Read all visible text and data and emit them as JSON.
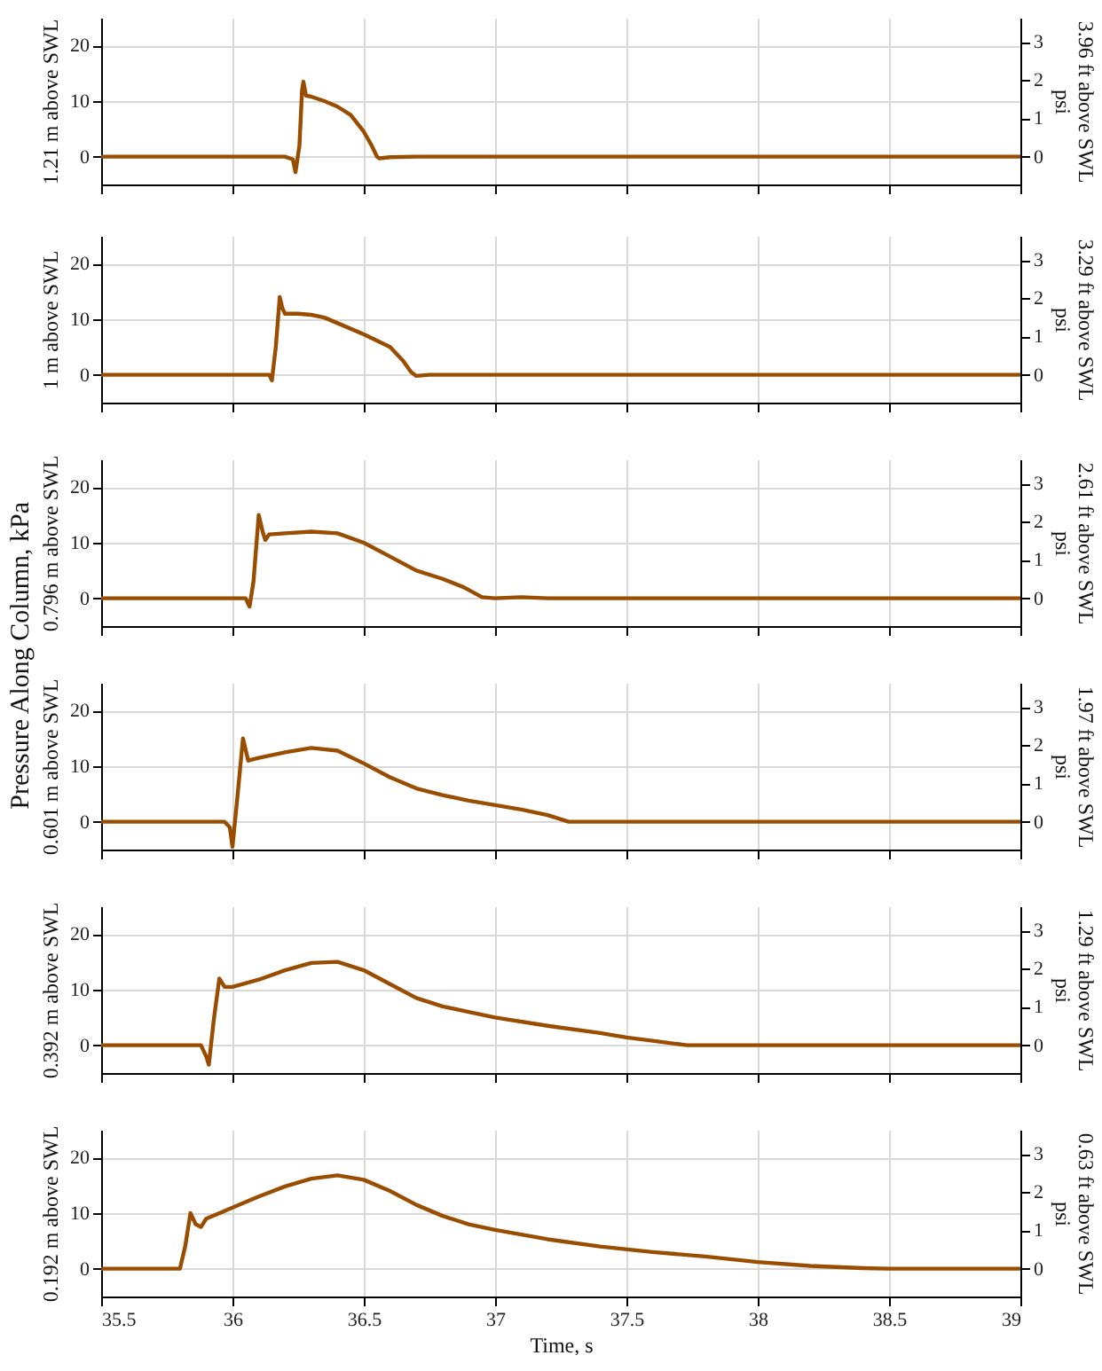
{
  "chart_data": [
    {
      "type": "line",
      "ylabel": "1.21 m above SWL",
      "y2label": "3.96 ft above SWL\npsi",
      "annotations": [
        "Pressure Along Column, kPa"
      ],
      "xlim": [
        35.5,
        39
      ],
      "xticks": [
        35.5,
        36,
        36.5,
        37,
        37.5,
        38,
        38.5,
        39
      ],
      "ylim": [
        -5,
        25
      ],
      "yticks": [
        0,
        10,
        20
      ],
      "y2lim": [
        -0.725,
        3.626
      ],
      "y2ticks": [
        0,
        1,
        2,
        3
      ],
      "grid": true,
      "tick_labels": "y",
      "line_style": "solid",
      "series": [
        {
          "color": "#994d00",
          "x": [
            35.5,
            36.2,
            36.23,
            36.24,
            36.255,
            36.265,
            36.27,
            36.28,
            36.3,
            36.35,
            36.4,
            36.45,
            36.5,
            36.53,
            36.55,
            36.56,
            36.6,
            36.7,
            39
          ],
          "values": [
            0,
            0,
            -0.5,
            -2.8,
            2,
            12,
            13.5,
            11,
            10.8,
            10,
            9,
            7.5,
            4.5,
            2,
            0,
            -0.3,
            -0.1,
            0,
            0
          ]
        }
      ]
    },
    {
      "type": "line",
      "ylabel": "1 m above SWL",
      "y2label": "3.29 ft above SWL\npsi",
      "xlim": [
        35.5,
        39
      ],
      "xticks": [
        35.5,
        36,
        36.5,
        37,
        37.5,
        38,
        38.5,
        39
      ],
      "ylim": [
        -5,
        25
      ],
      "yticks": [
        0,
        10,
        20
      ],
      "y2lim": [
        -0.725,
        3.626
      ],
      "y2ticks": [
        0,
        1,
        2,
        3
      ],
      "grid": true,
      "tick_labels": "y",
      "line_style": "solid",
      "series": [
        {
          "color": "#994d00",
          "x": [
            35.5,
            36.14,
            36.15,
            36.165,
            36.18,
            36.19,
            36.2,
            36.25,
            36.3,
            36.35,
            36.4,
            36.5,
            36.6,
            36.65,
            36.68,
            36.7,
            36.75,
            39
          ],
          "values": [
            0,
            0,
            -1,
            5,
            14,
            12,
            11,
            11,
            10.8,
            10.3,
            9.3,
            7.3,
            5,
            2.5,
            0.5,
            -0.2,
            0,
            0
          ]
        }
      ]
    },
    {
      "type": "line",
      "ylabel": "0.796 m above SWL",
      "y2label": "2.61 ft above SWL\npsi",
      "xlim": [
        35.5,
        39
      ],
      "xticks": [
        35.5,
        36,
        36.5,
        37,
        37.5,
        38,
        38.5,
        39
      ],
      "ylim": [
        -5,
        25
      ],
      "yticks": [
        0,
        10,
        20
      ],
      "y2lim": [
        -0.725,
        3.626
      ],
      "y2ticks": [
        0,
        1,
        2,
        3
      ],
      "grid": true,
      "tick_labels": "y",
      "line_style": "solid",
      "series": [
        {
          "color": "#994d00",
          "x": [
            35.5,
            36.05,
            36.065,
            36.08,
            36.1,
            36.115,
            36.125,
            36.14,
            36.2,
            36.3,
            36.4,
            36.5,
            36.6,
            36.7,
            36.8,
            36.88,
            36.95,
            37,
            37.1,
            37.2,
            39
          ],
          "values": [
            0,
            0,
            -1.5,
            3,
            15,
            12,
            10.5,
            11.5,
            11.7,
            12,
            11.7,
            10,
            7.5,
            5,
            3.5,
            2,
            0.2,
            0,
            0.2,
            0,
            0
          ]
        }
      ]
    },
    {
      "type": "line",
      "ylabel": "0.601 m above SWL",
      "y2label": "1.97 ft above SWL\npsi",
      "xlim": [
        35.5,
        39
      ],
      "xticks": [
        35.5,
        36,
        36.5,
        37,
        37.5,
        38,
        38.5,
        39
      ],
      "ylim": [
        -5,
        25
      ],
      "yticks": [
        0,
        10,
        20
      ],
      "y2lim": [
        -0.725,
        3.626
      ],
      "y2ticks": [
        0,
        1,
        2,
        3
      ],
      "grid": true,
      "tick_labels": "y",
      "line_style": "solid",
      "series": [
        {
          "color": "#994d00",
          "x": [
            35.5,
            35.97,
            35.99,
            36.0,
            36.02,
            36.04,
            36.06,
            36.1,
            36.2,
            36.3,
            36.4,
            36.5,
            36.6,
            36.7,
            36.8,
            36.9,
            37,
            37.1,
            37.2,
            37.28,
            39
          ],
          "values": [
            0,
            0,
            -1,
            -4.5,
            5,
            15,
            11,
            11.5,
            12.5,
            13.3,
            12.8,
            10.5,
            8,
            6,
            4.8,
            3.8,
            3,
            2.2,
            1.2,
            0,
            0
          ]
        }
      ]
    },
    {
      "type": "line",
      "ylabel": "0.392 m above SWL",
      "y2label": "1.29 ft above SWL\npsi",
      "xlim": [
        35.5,
        39
      ],
      "xticks": [
        35.5,
        36,
        36.5,
        37,
        37.5,
        38,
        38.5,
        39
      ],
      "ylim": [
        -5,
        25
      ],
      "yticks": [
        0,
        10,
        20
      ],
      "y2lim": [
        -0.725,
        3.626
      ],
      "y2ticks": [
        0,
        1,
        2,
        3
      ],
      "grid": true,
      "tick_labels": "y",
      "line_style": "solid",
      "series": [
        {
          "color": "#994d00",
          "x": [
            35.5,
            35.88,
            35.9,
            35.91,
            35.93,
            35.95,
            35.97,
            36,
            36.1,
            36.2,
            36.3,
            36.4,
            36.5,
            36.6,
            36.7,
            36.8,
            36.9,
            37,
            37.2,
            37.4,
            37.5,
            37.6,
            37.73,
            39
          ],
          "values": [
            0,
            0,
            -2,
            -3.5,
            5,
            12,
            10.5,
            10.5,
            11.8,
            13.5,
            14.8,
            15,
            13.5,
            11,
            8.5,
            7,
            6,
            5,
            3.5,
            2.2,
            1.4,
            0.8,
            0,
            0
          ]
        }
      ]
    },
    {
      "type": "line",
      "xlabel": "Time, s",
      "ylabel": "0.192 m above SWL",
      "y2label": "0.63 ft above SWL\npsi",
      "xlim": [
        35.5,
        39
      ],
      "xticks": [
        35.5,
        36,
        36.5,
        37,
        37.5,
        38,
        38.5,
        39
      ],
      "ylim": [
        -5,
        25
      ],
      "yticks": [
        0,
        10,
        20
      ],
      "y2lim": [
        -0.725,
        3.626
      ],
      "y2ticks": [
        0,
        1,
        2,
        3
      ],
      "grid": true,
      "line_style": "solid",
      "series": [
        {
          "color": "#994d00",
          "x": [
            35.5,
            35.8,
            35.82,
            35.84,
            35.86,
            35.88,
            35.9,
            36,
            36.1,
            36.2,
            36.3,
            36.4,
            36.5,
            36.6,
            36.7,
            36.8,
            36.9,
            37,
            37.2,
            37.4,
            37.6,
            37.8,
            38,
            38.2,
            38.4,
            38.5,
            39
          ],
          "values": [
            0,
            0,
            4,
            10,
            8,
            7.5,
            9,
            11,
            13,
            14.8,
            16.2,
            16.8,
            16,
            14,
            11.5,
            9.5,
            8,
            7,
            5.3,
            4,
            3,
            2.2,
            1.2,
            0.5,
            0.1,
            0,
            0
          ]
        }
      ]
    }
  ]
}
